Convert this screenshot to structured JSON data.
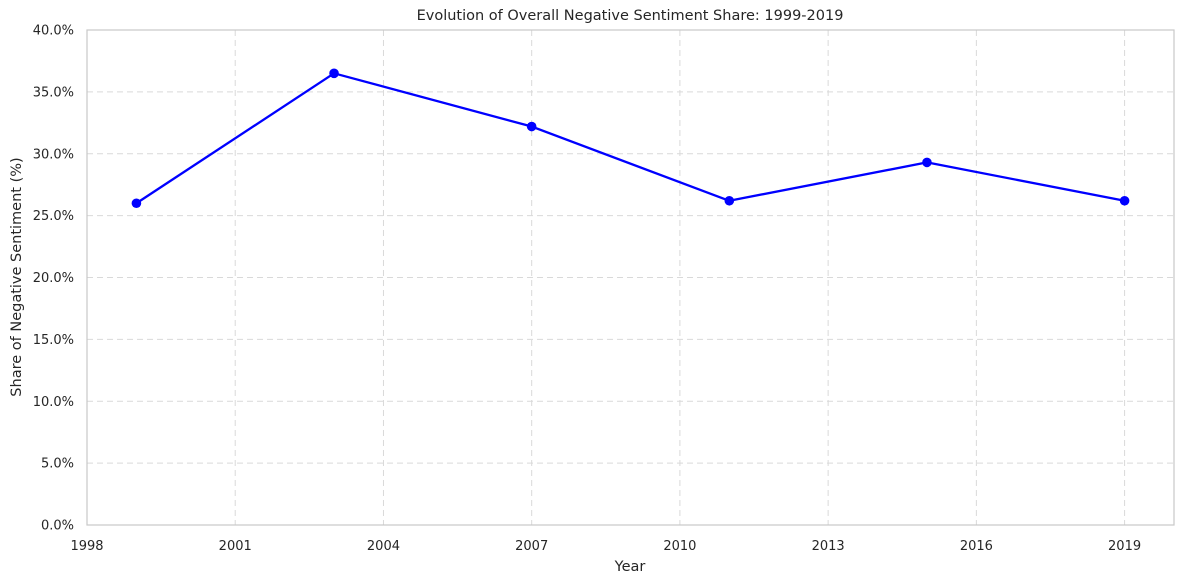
{
  "chart_data": {
    "type": "line",
    "title": "Evolution of Overall Negative Sentiment Share: 1999-2019",
    "xlabel": "Year",
    "ylabel": "Share of Negative Sentiment (%)",
    "xlim": [
      1998,
      2020
    ],
    "ylim": [
      0,
      40
    ],
    "x_ticks": [
      1998,
      2001,
      2004,
      2007,
      2010,
      2013,
      2016,
      2019
    ],
    "y_ticks": [
      0,
      5,
      10,
      15,
      20,
      25,
      30,
      35,
      40
    ],
    "y_tick_format": "percent_1dp",
    "grid": true,
    "legend": "none",
    "series": [
      {
        "color": "#0000ff",
        "marker": "circle",
        "x": [
          1999,
          2003,
          2007,
          2011,
          2015,
          2019
        ],
        "y": [
          26.0,
          36.5,
          32.2,
          26.2,
          29.3,
          26.2
        ]
      }
    ]
  }
}
